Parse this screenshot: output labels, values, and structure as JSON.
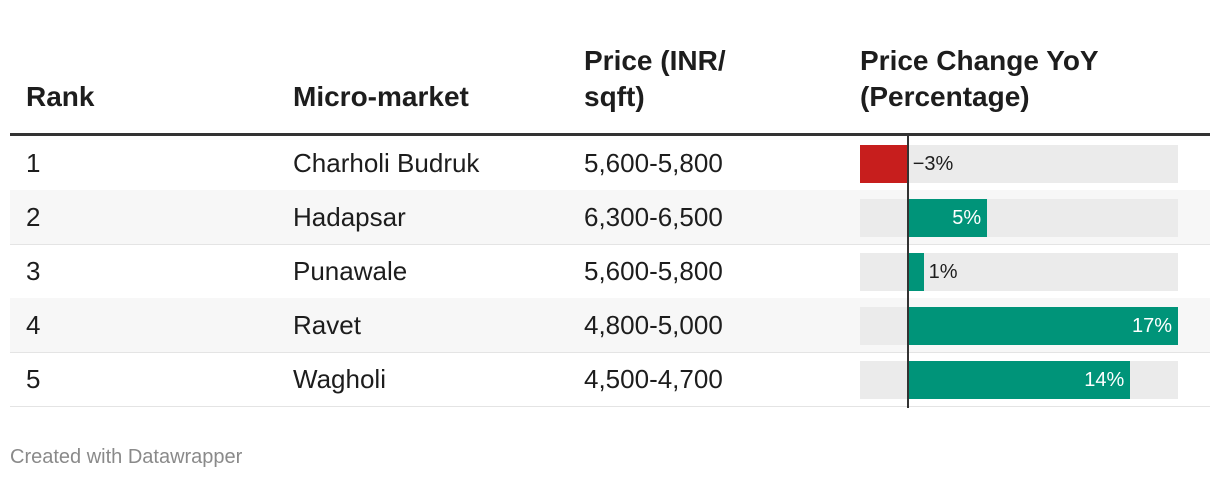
{
  "header": {
    "rank": "Rank",
    "market": "Micro-market",
    "price": "Price (INR/\nsqft)",
    "change": "Price Change YoY\n(Percentage)"
  },
  "rows": [
    {
      "rank": "1",
      "market": "Charholi Budruk",
      "price": "5,600-5,800",
      "change": -3,
      "change_label": "−3%"
    },
    {
      "rank": "2",
      "market": "Hadapsar",
      "price": "6,300-6,500",
      "change": 5,
      "change_label": "5%"
    },
    {
      "rank": "3",
      "market": "Punawale",
      "price": "5,600-5,800",
      "change": 1,
      "change_label": "1%"
    },
    {
      "rank": "4",
      "market": "Ravet",
      "price": "4,800-5,000",
      "change": 17,
      "change_label": "17%"
    },
    {
      "rank": "5",
      "market": "Wagholi",
      "price": "4,500-4,700",
      "change": 14,
      "change_label": "14%"
    }
  ],
  "footer": "Created with Datawrapper",
  "colors": {
    "positive": "#009479",
    "negative": "#c71e1d"
  },
  "chart_data": {
    "type": "table",
    "columns": [
      "Rank",
      "Micro-market",
      "Price (INR/sqft)",
      "Price Change YoY (Percentage)"
    ],
    "categories": [
      "Charholi Budruk",
      "Hadapsar",
      "Punawale",
      "Ravet",
      "Wagholi"
    ],
    "series": [
      {
        "name": "Price Change YoY (Percentage)",
        "values": [
          -3,
          5,
          1,
          17,
          14
        ]
      }
    ],
    "xlim": [
      -3,
      17
    ]
  }
}
